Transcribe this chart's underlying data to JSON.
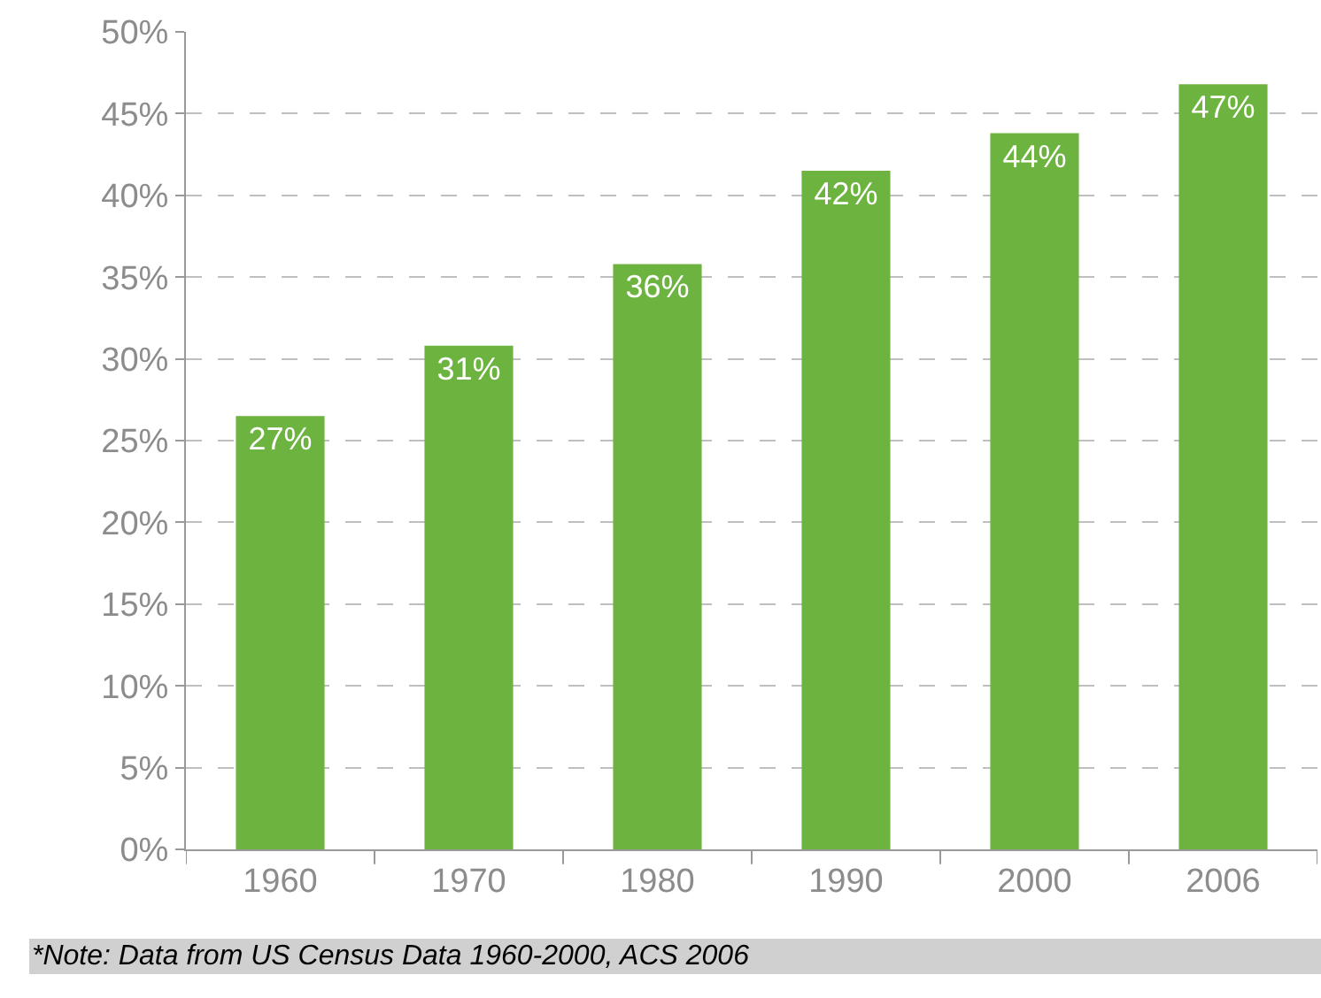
{
  "chart_data": {
    "type": "bar",
    "categories": [
      "1960",
      "1970",
      "1980",
      "1990",
      "2000",
      "2006"
    ],
    "values": [
      26.5,
      30.8,
      35.8,
      41.5,
      43.8,
      46.8
    ],
    "value_labels": [
      "27%",
      "31%",
      "36%",
      "42%",
      "44%",
      "47%"
    ],
    "color": "#6db33f",
    "ylim": [
      0,
      50
    ],
    "yticks": [
      {
        "value": 0,
        "label": "0%"
      },
      {
        "value": 5,
        "label": "5%"
      },
      {
        "value": 10,
        "label": "10%"
      },
      {
        "value": 15,
        "label": "15%"
      },
      {
        "value": 20,
        "label": "20%"
      },
      {
        "value": 25,
        "label": "25%"
      },
      {
        "value": 30,
        "label": "30%"
      },
      {
        "value": 35,
        "label": "35%"
      },
      {
        "value": 40,
        "label": "40%"
      },
      {
        "value": 45,
        "label": "45%"
      },
      {
        "value": 50,
        "label": "50%"
      }
    ],
    "grid": "y",
    "legend": false,
    "annotations": [
      "*Note: Data from US Census Data 1960-2000, ACS 2006"
    ]
  }
}
